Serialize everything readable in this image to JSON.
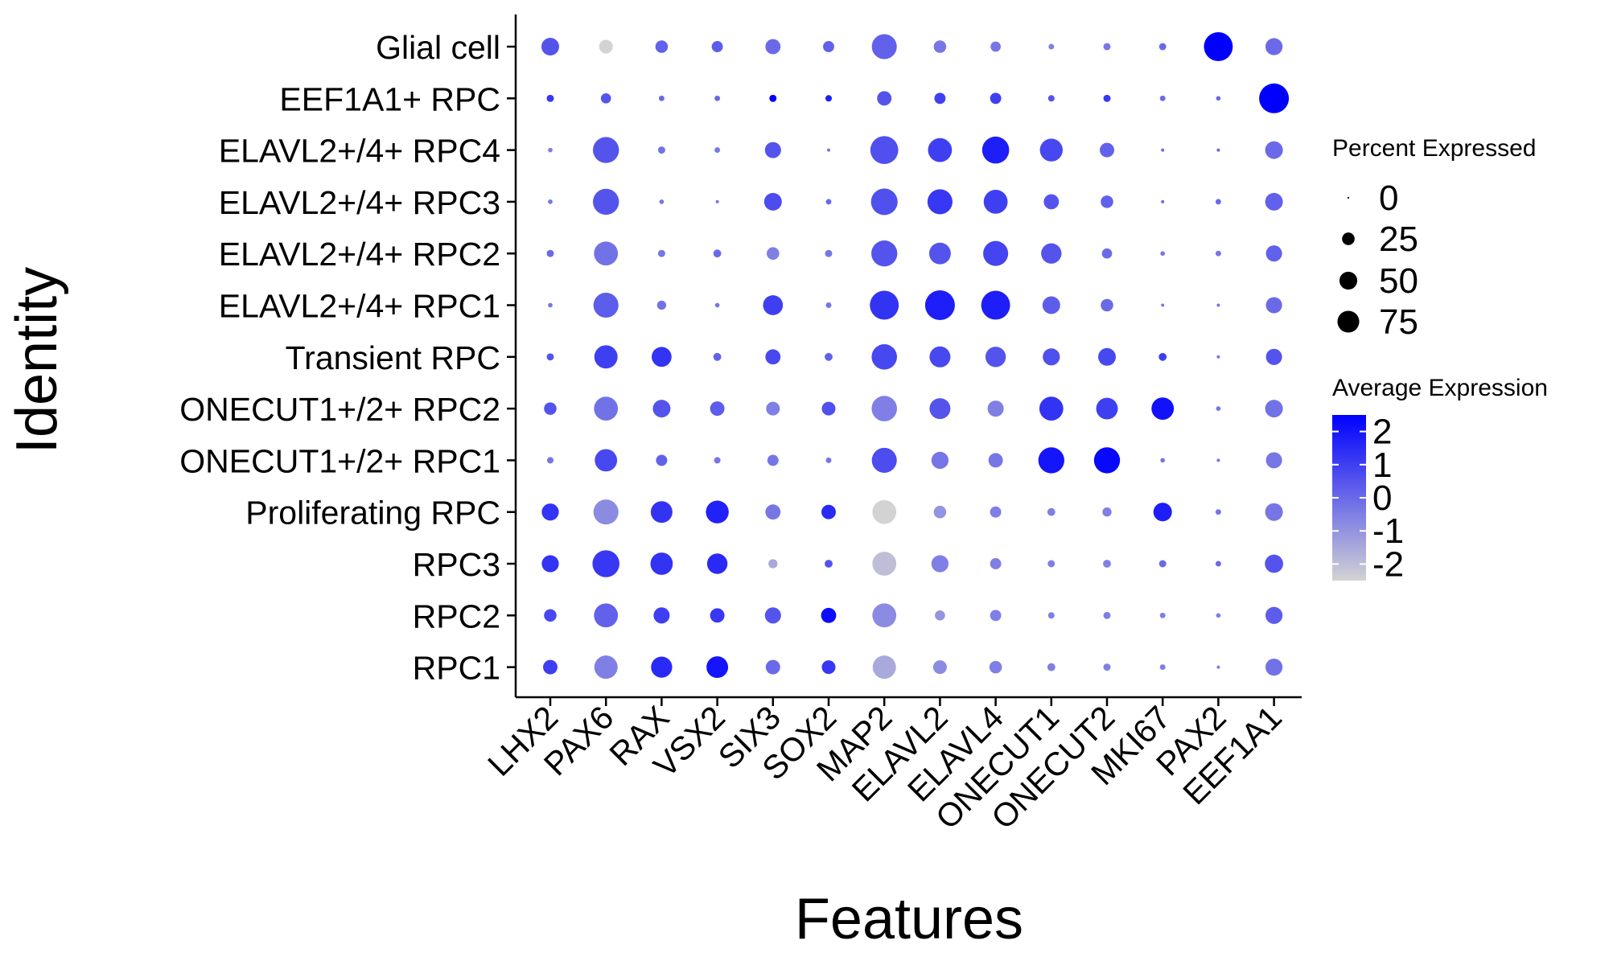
{
  "chart_data": {
    "type": "dot_plot",
    "xlabel": "Features",
    "ylabel": "Identity",
    "features": [
      "LHX2",
      "PAX6",
      "RAX",
      "VSX2",
      "SIX3",
      "SOX2",
      "MAP2",
      "ELAVL2",
      "ELAVL4",
      "ONECUT1",
      "ONECUT2",
      "MKI67",
      "PAX2",
      "EEF1A1"
    ],
    "identities": [
      "Glial cell",
      "EEF1A1+ RPC",
      "ELAVL2+/4+ RPC4",
      "ELAVL2+/4+ RPC3",
      "ELAVL2+/4+ RPC2",
      "ELAVL2+/4+ RPC1",
      "Transient RPC",
      "ONECUT1+/2+ RPC2",
      "ONECUT1+/2+ RPC1",
      "Proliferating RPC",
      "RPC3",
      "RPC2",
      "RPC1"
    ],
    "percent_expressed": [
      [
        30,
        18,
        15,
        12,
        22,
        12,
        60,
        15,
        10,
        3,
        5,
        5,
        80,
        28
      ],
      [
        5,
        10,
        3,
        3,
        5,
        4,
        20,
        12,
        12,
        4,
        5,
        3,
        2,
        85
      ],
      [
        2,
        65,
        5,
        3,
        25,
        1,
        75,
        55,
        70,
        50,
        20,
        1,
        1,
        30
      ],
      [
        2,
        65,
        2,
        1,
        30,
        3,
        68,
        60,
        55,
        22,
        15,
        1,
        3,
        30
      ],
      [
        5,
        55,
        5,
        6,
        15,
        5,
        65,
        45,
        60,
        40,
        10,
        2,
        3,
        25
      ],
      [
        2,
        60,
        8,
        2,
        38,
        3,
        80,
        85,
        80,
        30,
        15,
        1,
        1,
        25
      ],
      [
        5,
        52,
        38,
        6,
        22,
        6,
        62,
        42,
        40,
        28,
        30,
        6,
        1,
        25
      ],
      [
        15,
        55,
        30,
        20,
        18,
        18,
        62,
        42,
        25,
        55,
        45,
        48,
        2,
        30
      ],
      [
        4,
        48,
        12,
        4,
        12,
        3,
        60,
        28,
        20,
        65,
        65,
        2,
        1,
        25
      ],
      [
        28,
        60,
        45,
        50,
        22,
        20,
        55,
        15,
        12,
        6,
        8,
        33,
        3,
        30
      ],
      [
        28,
        70,
        48,
        40,
        8,
        6,
        55,
        28,
        12,
        5,
        6,
        5,
        3,
        32
      ],
      [
        15,
        55,
        25,
        20,
        25,
        22,
        55,
        10,
        12,
        4,
        5,
        3,
        2,
        28
      ],
      [
        20,
        52,
        43,
        45,
        20,
        18,
        52,
        18,
        15,
        6,
        5,
        3,
        1,
        28
      ]
    ],
    "average_expression": [
      [
        0.5,
        -2.5,
        0.2,
        0.3,
        0.0,
        0.2,
        0.2,
        -0.3,
        -0.3,
        -0.5,
        -0.3,
        0.0,
        2.5,
        0.0
      ],
      [
        1.2,
        0.5,
        0.0,
        0.0,
        2.5,
        1.8,
        0.5,
        1.0,
        1.0,
        0.5,
        1.2,
        0.0,
        0.0,
        2.5
      ],
      [
        -0.5,
        0.5,
        -0.2,
        -0.3,
        0.5,
        -0.3,
        0.6,
        1.0,
        1.8,
        0.8,
        0.2,
        0.0,
        0.0,
        0.0
      ],
      [
        -0.3,
        0.5,
        -0.3,
        -0.3,
        0.7,
        0.0,
        0.6,
        1.2,
        1.0,
        0.5,
        0.2,
        0.0,
        0.0,
        0.2
      ],
      [
        0.0,
        -0.2,
        -0.3,
        0.0,
        -0.5,
        -0.3,
        0.5,
        0.5,
        0.9,
        0.5,
        0.0,
        -0.3,
        -0.3,
        0.2
      ],
      [
        -0.3,
        0.3,
        -0.2,
        -0.3,
        1.0,
        -0.3,
        1.3,
        1.8,
        1.8,
        0.3,
        0.0,
        -0.3,
        -0.3,
        0.0
      ],
      [
        0.5,
        1.0,
        1.3,
        0.2,
        0.8,
        0.2,
        0.8,
        0.8,
        0.5,
        0.6,
        0.8,
        1.0,
        -0.3,
        0.5
      ],
      [
        0.5,
        -0.2,
        0.5,
        0.3,
        -0.5,
        0.6,
        -0.5,
        0.5,
        -0.5,
        1.3,
        1.0,
        2.1,
        -0.3,
        -0.2
      ],
      [
        -0.3,
        0.8,
        0.2,
        -0.3,
        -0.3,
        -0.3,
        0.7,
        -0.3,
        -0.3,
        2.0,
        2.3,
        -0.3,
        -0.3,
        -0.3
      ],
      [
        1.3,
        -0.8,
        1.3,
        1.7,
        -0.3,
        1.5,
        -2.5,
        -1.0,
        -0.5,
        -0.5,
        -0.5,
        1.8,
        -0.3,
        -0.3
      ],
      [
        1.3,
        1.2,
        1.3,
        1.5,
        -1.5,
        0.5,
        -2.0,
        -0.5,
        -0.5,
        -0.5,
        -0.5,
        0.0,
        0.0,
        0.5
      ],
      [
        0.8,
        0.2,
        1.0,
        1.2,
        0.5,
        2.2,
        -0.8,
        -1.0,
        -0.5,
        -0.5,
        -0.5,
        -0.5,
        -0.5,
        0.3
      ],
      [
        1.0,
        -0.5,
        1.5,
        2.0,
        0.0,
        1.2,
        -1.5,
        -0.8,
        -0.5,
        -0.5,
        -0.5,
        -0.5,
        -0.5,
        -0.2
      ]
    ],
    "legend_size": {
      "title": "Percent Expressed",
      "breaks": [
        0,
        25,
        50,
        75
      ],
      "labels": [
        "0",
        "25",
        "50",
        "75"
      ]
    },
    "legend_color": {
      "title": "Average Expression",
      "breaks": [
        2,
        1,
        0,
        -1,
        -2
      ],
      "labels": [
        "2",
        "1",
        "0",
        "-1",
        "-2"
      ],
      "range": [
        -2.5,
        2.5
      ],
      "low_color": "#d3d3d3",
      "high_color": "#0000ff"
    }
  }
}
